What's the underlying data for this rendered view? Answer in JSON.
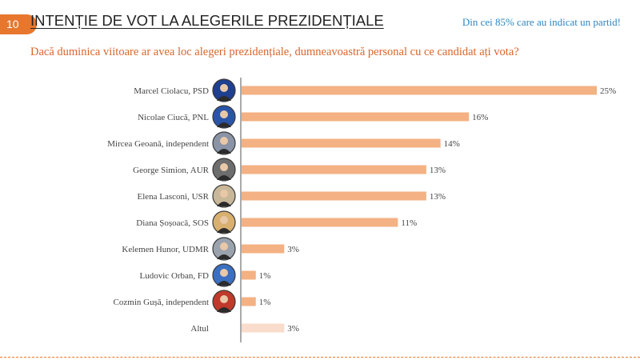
{
  "slide_number": "10",
  "title": "INTENȚIE DE VOT LA ALEGERILE PREZIDENȚIALE",
  "note": "Din cei 85% care au indicat un partid!",
  "question": "Dacă duminica viitoare ar avea loc alegeri prezidențiale, dumneavoastră personal cu ce candidat ați vota?",
  "colors": {
    "bar": "#f4b183",
    "bar_other": "#f9dccb",
    "accent": "#e8772e",
    "note": "#2e86c1",
    "axis": "#555555"
  },
  "chart_data": {
    "type": "bar",
    "orientation": "horizontal",
    "title": "",
    "xlabel": "",
    "ylabel": "",
    "xlim": [
      0,
      25
    ],
    "grid": false,
    "categories": [
      "Marcel Ciolacu, PSD",
      "Nicolae Ciucă, PNL",
      "Mircea Geoană, independent",
      "George Simion, AUR",
      "Elena Lasconi, USR",
      "Diana Șoșoacă, SOS",
      "Kelemen Hunor, UDMR",
      "Ludovic Orban, FD",
      "Cozmin Gușă, independent",
      "Altul"
    ],
    "values": [
      25,
      16,
      14,
      13,
      13,
      11,
      3,
      1,
      1,
      3
    ],
    "value_labels": [
      "25%",
      "16%",
      "14%",
      "13%",
      "13%",
      "11%",
      "3%",
      "1%",
      "1%",
      "3%"
    ],
    "has_photo": [
      true,
      true,
      true,
      true,
      true,
      true,
      true,
      true,
      true,
      false
    ],
    "photo_bg": [
      "#1f3f8f",
      "#2a54a8",
      "#8a94a6",
      "#6d6d6d",
      "#c9b79a",
      "#d8b070",
      "#9aa3ad",
      "#3a6fc2",
      "#c0392b",
      ""
    ]
  }
}
